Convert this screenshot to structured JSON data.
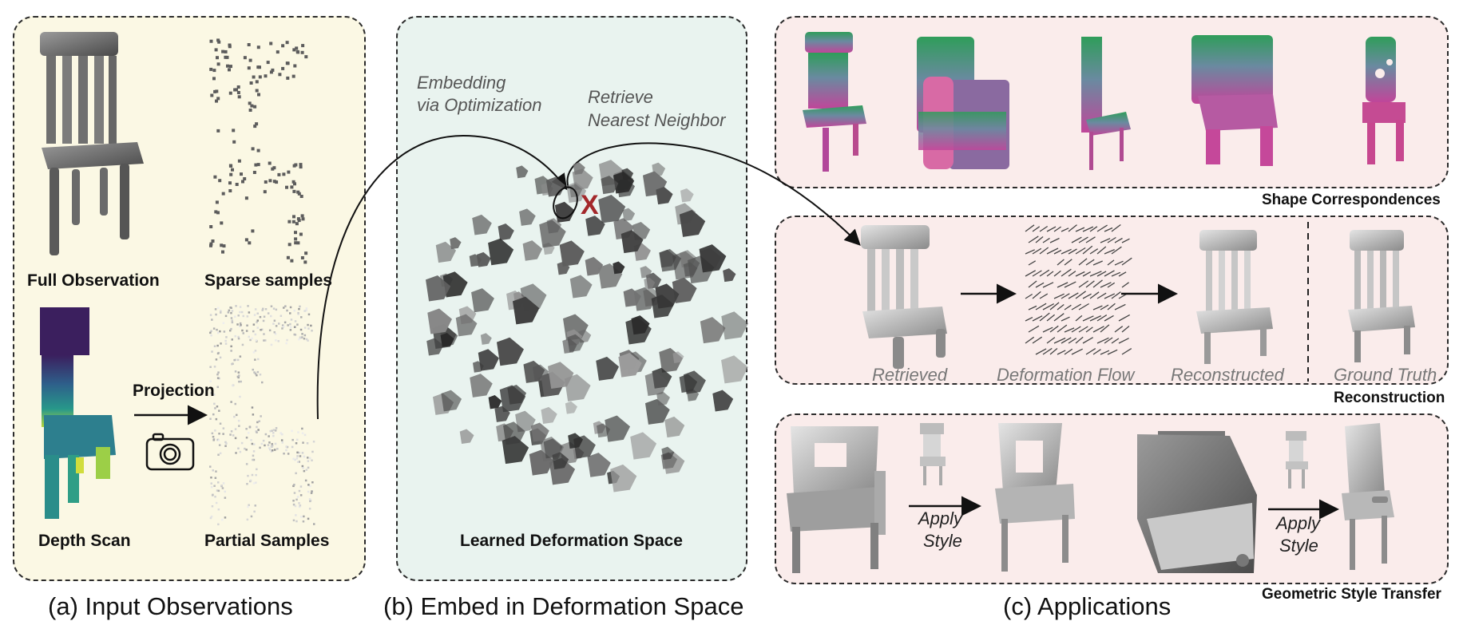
{
  "colors": {
    "panel_a_bg": "#fbf8e4",
    "panel_b_bg": "#e9f3ef",
    "panel_c_bg": "#faeceb",
    "cross_mark": "#a3282b"
  },
  "panel_a": {
    "full_observation": "Full Observation",
    "sparse_samples": "Sparse samples",
    "depth_scan": "Depth Scan",
    "partial_samples": "Partial Samples",
    "projection": "Projection",
    "caption": "(a) Input Observations"
  },
  "panel_b": {
    "embedding_line1": "Embedding",
    "embedding_line2": "via Optimization",
    "retrieve_line1": "Retrieve",
    "retrieve_line2": "Nearest Neighbor",
    "cross": "X",
    "space_label": "Learned Deformation Space",
    "caption": "(b) Embed in Deformation Space"
  },
  "panel_c": {
    "shape_correspondences": "Shape Correspondences",
    "reconstruction": "Reconstruction",
    "geometric_style_transfer": "Geometric Style Transfer",
    "retrieved": "Retrieved",
    "deformation_flow": "Deformation Flow",
    "reconstructed": "Reconstructed",
    "ground_truth": "Ground Truth",
    "apply_style_1_line1": "Apply",
    "apply_style_1_line2": "Style",
    "apply_style_2_line1": "Apply",
    "apply_style_2_line2": "Style",
    "caption": "(c) Applications"
  }
}
